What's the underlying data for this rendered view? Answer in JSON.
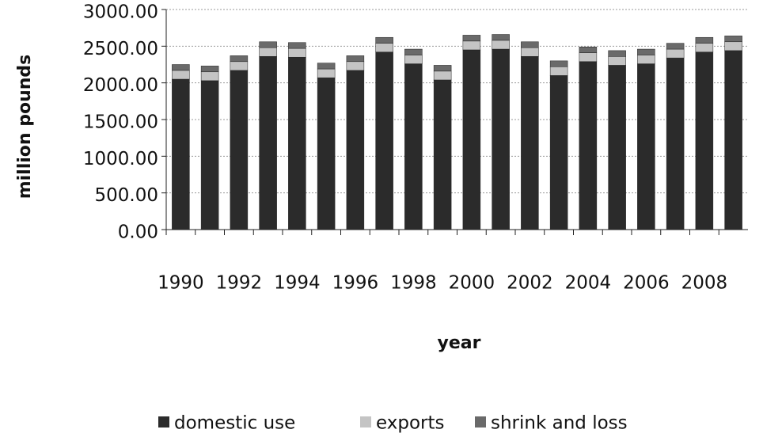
{
  "chart_data": {
    "type": "stacked_bar",
    "x_label": "year",
    "y_label": "million pounds",
    "categories": [
      "1990",
      null,
      "1992",
      null,
      "1994",
      null,
      "1996",
      null,
      "1998",
      null,
      "2000",
      null,
      "2002",
      null,
      "2004",
      null,
      "2006",
      null,
      "2008",
      null
    ],
    "series": [
      {
        "name": "domestic use",
        "color": "#2b2b2b",
        "values": [
          2050,
          2030,
          2170,
          2360,
          2350,
          2070,
          2170,
          2420,
          2260,
          2040,
          2450,
          2460,
          2360,
          2100,
          2290,
          2240,
          2260,
          2340,
          2420,
          2440
        ]
      },
      {
        "name": "exports",
        "color": "#c4c4c4",
        "values": [
          120,
          120,
          120,
          120,
          120,
          120,
          120,
          120,
          120,
          120,
          120,
          120,
          120,
          120,
          120,
          120,
          120,
          120,
          120,
          120
        ]
      },
      {
        "name": "shrink and loss",
        "color": "#6a6a6a",
        "values": [
          80,
          80,
          80,
          80,
          80,
          80,
          80,
          80,
          80,
          80,
          80,
          80,
          80,
          80,
          80,
          80,
          80,
          80,
          80,
          80
        ]
      }
    ],
    "ylim": [
      0,
      3000
    ],
    "yticks": [
      {
        "value": 0,
        "label": "0.00"
      },
      {
        "value": 500,
        "label": "500.00"
      },
      {
        "value": 1000,
        "label": "1000.00"
      },
      {
        "value": 1500,
        "label": "1500.00"
      },
      {
        "value": 2000,
        "label": "2000.00"
      },
      {
        "value": 2500,
        "label": "2500.00"
      },
      {
        "value": 3000,
        "label": "3000.00"
      }
    ],
    "grid": true,
    "legend": "bottom"
  }
}
